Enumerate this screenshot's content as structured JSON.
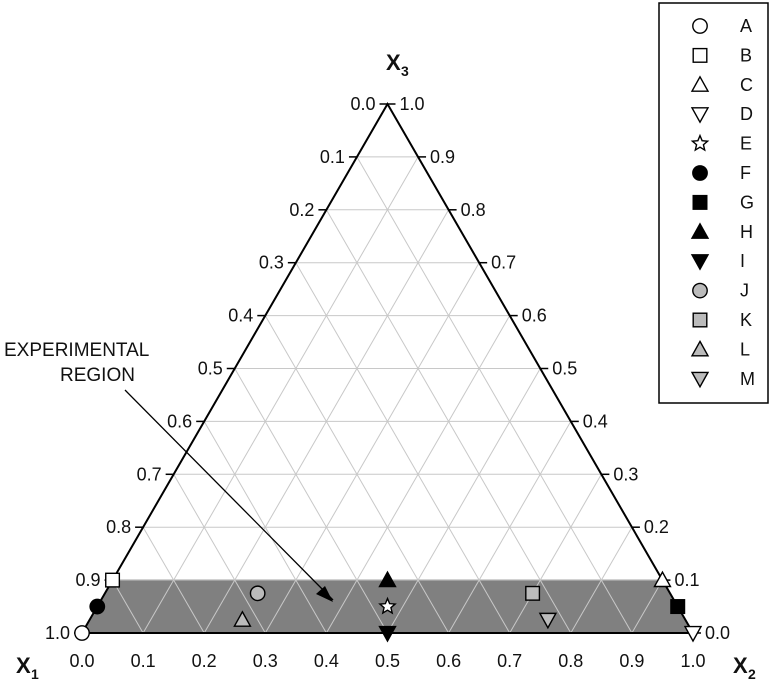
{
  "chart_data": {
    "type": "scatter",
    "subtype": "ternary",
    "axes": {
      "x1": {
        "label_main": "X",
        "label_sub": "1"
      },
      "x2": {
        "label_main": "X",
        "label_sub": "2"
      },
      "x3": {
        "label_main": "X",
        "label_sub": "3"
      }
    },
    "bottom_ticks": [
      "0.0",
      "0.1",
      "0.2",
      "0.3",
      "0.4",
      "0.5",
      "0.6",
      "0.7",
      "0.8",
      "0.9",
      "1.0"
    ],
    "left_ticks": [
      "0.0",
      "0.1",
      "0.2",
      "0.3",
      "0.4",
      "0.5",
      "0.6",
      "0.7",
      "0.8",
      "0.9",
      "1.0"
    ],
    "right_ticks": [
      "1.0",
      "0.9",
      "0.8",
      "0.7",
      "0.6",
      "0.5",
      "0.4",
      "0.3",
      "0.2",
      "0.1",
      "0.0"
    ],
    "grid": true,
    "grid_step": 0.1,
    "shaded_region": {
      "x3_min": 0.0,
      "x3_max": 0.1
    },
    "annotation": {
      "line1": "EXPERIMENTAL",
      "line2": "REGION"
    },
    "legend_position": "top-right",
    "points": [
      {
        "label": "A",
        "marker": "circle",
        "fill": "#ffffff",
        "x1": 1.0,
        "x2": 0.0,
        "x3": 0.0
      },
      {
        "label": "B",
        "marker": "square",
        "fill": "#ffffff",
        "x1": 0.9,
        "x2": 0.0,
        "x3": 0.1
      },
      {
        "label": "C",
        "marker": "triangle-up",
        "fill": "#ffffff",
        "x1": 0.0,
        "x2": 0.9,
        "x3": 0.1
      },
      {
        "label": "D",
        "marker": "triangle-down",
        "fill": "#ffffff",
        "x1": 0.0,
        "x2": 1.0,
        "x3": 0.0
      },
      {
        "label": "E",
        "marker": "star",
        "fill": "#ffffff",
        "x1": 0.475,
        "x2": 0.475,
        "x3": 0.05
      },
      {
        "label": "F",
        "marker": "circle",
        "fill": "#000000",
        "x1": 0.95,
        "x2": 0.0,
        "x3": 0.05
      },
      {
        "label": "G",
        "marker": "square",
        "fill": "#000000",
        "x1": 0.0,
        "x2": 0.95,
        "x3": 0.05
      },
      {
        "label": "H",
        "marker": "triangle-up",
        "fill": "#000000",
        "x1": 0.45,
        "x2": 0.45,
        "x3": 0.1
      },
      {
        "label": "I",
        "marker": "triangle-down",
        "fill": "#000000",
        "x1": 0.5,
        "x2": 0.5,
        "x3": 0.0
      },
      {
        "label": "J",
        "marker": "circle",
        "fill": "#bbbbbb",
        "x1": 0.675,
        "x2": 0.25,
        "x3": 0.075
      },
      {
        "label": "K",
        "marker": "square",
        "fill": "#bbbbbb",
        "x1": 0.225,
        "x2": 0.7,
        "x3": 0.075
      },
      {
        "label": "L",
        "marker": "triangle-up",
        "fill": "#bbbbbb",
        "x1": 0.725,
        "x2": 0.25,
        "x3": 0.025
      },
      {
        "label": "M",
        "marker": "triangle-down",
        "fill": "#bbbbbb",
        "x1": 0.225,
        "x2": 0.75,
        "x3": 0.025
      }
    ],
    "colors": {
      "region": "#808080",
      "grid": "#c8c8c8",
      "outline": "#000000"
    }
  }
}
